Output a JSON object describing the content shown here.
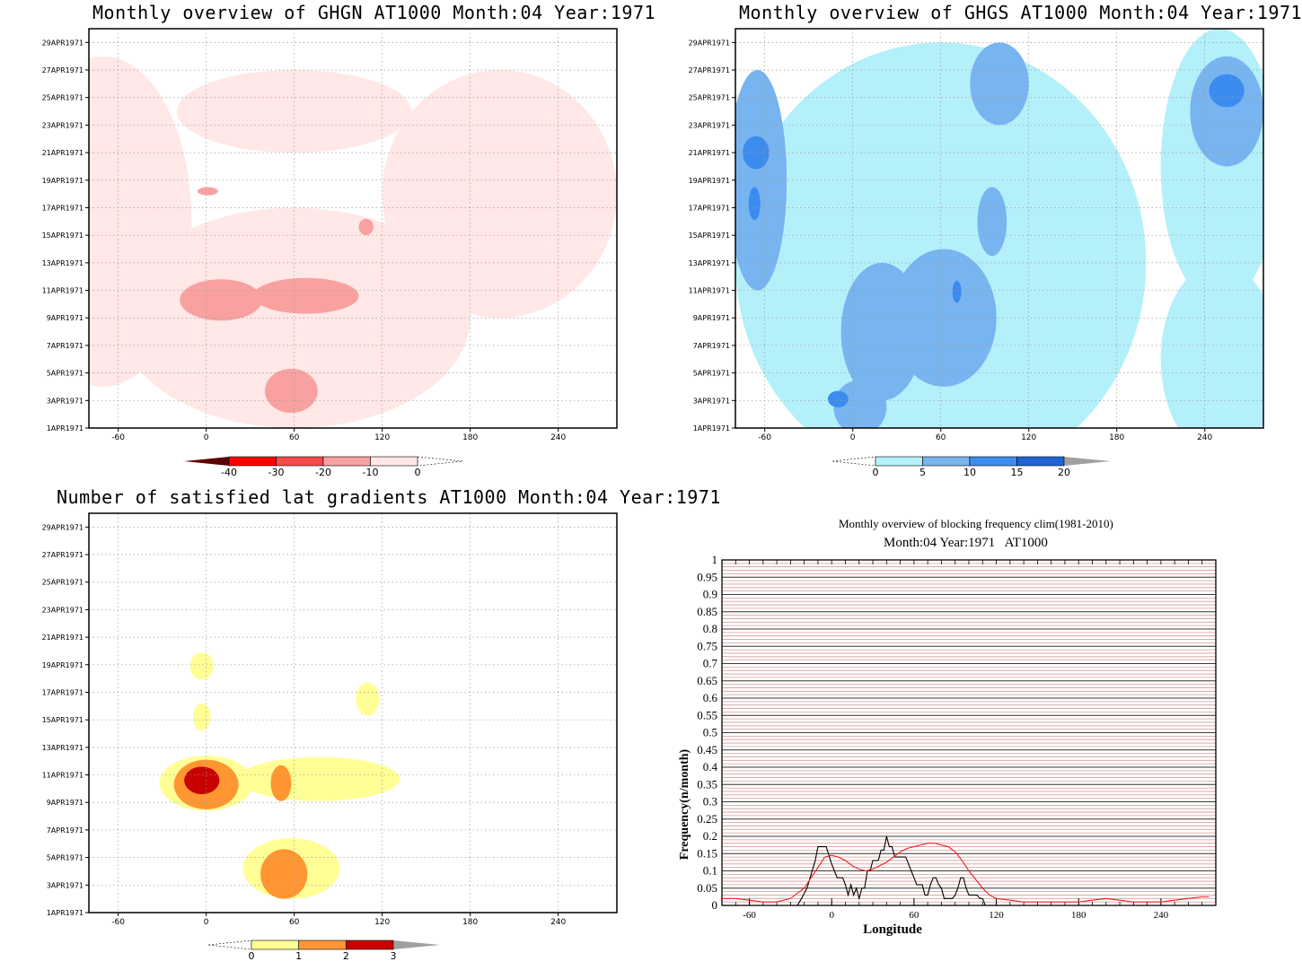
{
  "chart_data": [
    {
      "type": "heatmap",
      "title": "Monthly overview of GHGN AT1000 Month:04 Year:1971",
      "x_ticks": [
        -60,
        0,
        60,
        120,
        180,
        240
      ],
      "y_ticks": [
        "1APR1971",
        "3APR1971",
        "5APR1971",
        "7APR1971",
        "9APR1971",
        "11APR1971",
        "13APR1971",
        "15APR1971",
        "17APR1971",
        "19APR1971",
        "21APR1971",
        "23APR1971",
        "25APR1971",
        "27APR1971",
        "29APR1971"
      ],
      "xlim": [
        -80,
        280
      ],
      "ylim": [
        1,
        30
      ],
      "grid": true,
      "colorbar": {
        "ticks": [
          "-40",
          "-30",
          "-20",
          "-10",
          "0"
        ],
        "colors": [
          "#5c0000",
          "#ff0000",
          "#f44b4b",
          "#f9a1a1",
          "#ffe8e6"
        ]
      },
      "regions": [
        {
          "level": -10,
          "x": -70,
          "y": 16,
          "rx": 60,
          "ry": 12
        },
        {
          "level": -10,
          "x": 60,
          "y": 9,
          "rx": 120,
          "ry": 8
        },
        {
          "level": -10,
          "x": 200,
          "y": 18,
          "rx": 80,
          "ry": 9
        },
        {
          "level": -10,
          "x": 60,
          "y": 24,
          "rx": 80,
          "ry": 3
        },
        {
          "level": -20,
          "x": 10,
          "y": 10.3,
          "rx": 28,
          "ry": 1.5
        },
        {
          "level": -20,
          "x": 68,
          "y": 10.6,
          "rx": 36,
          "ry": 1.3
        },
        {
          "level": -20,
          "x": 58,
          "y": 3.7,
          "rx": 18,
          "ry": 1.6
        },
        {
          "level": -20,
          "x": 109,
          "y": 15.6,
          "rx": 5,
          "ry": 0.6
        },
        {
          "level": -20,
          "x": 1,
          "y": 18.2,
          "rx": 7,
          "ry": 0.3
        }
      ]
    },
    {
      "type": "heatmap",
      "title": "Monthly overview of GHGS AT1000 Month:04 Year:1971",
      "x_ticks": [
        -60,
        0,
        60,
        120,
        180,
        240
      ],
      "y_ticks": [
        "1APR1971",
        "3APR1971",
        "5APR1971",
        "7APR1971",
        "9APR1971",
        "11APR1971",
        "13APR1971",
        "15APR1971",
        "17APR1971",
        "19APR1971",
        "21APR1971",
        "23APR1971",
        "25APR1971",
        "27APR1971",
        "29APR1971"
      ],
      "xlim": [
        -80,
        280
      ],
      "ylim": [
        1,
        30
      ],
      "grid": true,
      "colorbar": {
        "ticks": [
          "0",
          "5",
          "10",
          "15",
          "20"
        ],
        "colors": [
          "#b4f0fa",
          "#78b4f0",
          "#3c8cf0",
          "#1e64d2",
          "#a0a0a0"
        ]
      },
      "regions": [
        {
          "level": 5,
          "x": 60,
          "y": 13,
          "rx": 140,
          "ry": 16
        },
        {
          "level": 5,
          "x": 250,
          "y": 20,
          "rx": 40,
          "ry": 10
        },
        {
          "level": 5,
          "x": 250,
          "y": 6,
          "rx": 40,
          "ry": 7
        },
        {
          "level": 10,
          "x": -65,
          "y": 19,
          "rx": 20,
          "ry": 8
        },
        {
          "level": 10,
          "x": 20,
          "y": 8,
          "rx": 28,
          "ry": 5
        },
        {
          "level": 10,
          "x": 62,
          "y": 9,
          "rx": 36,
          "ry": 5
        },
        {
          "level": 10,
          "x": 95,
          "y": 16,
          "rx": 10,
          "ry": 2.5
        },
        {
          "level": 10,
          "x": 100,
          "y": 26,
          "rx": 20,
          "ry": 3
        },
        {
          "level": 10,
          "x": 255,
          "y": 24,
          "rx": 25,
          "ry": 4
        },
        {
          "level": 10,
          "x": 5,
          "y": 2.5,
          "rx": 18,
          "ry": 2
        },
        {
          "level": 15,
          "x": -66,
          "y": 21,
          "rx": 9,
          "ry": 1.2
        },
        {
          "level": 15,
          "x": -67,
          "y": 17.3,
          "rx": 4,
          "ry": 1.2
        },
        {
          "level": 15,
          "x": 71,
          "y": 10.9,
          "rx": 3,
          "ry": 0.8
        },
        {
          "level": 15,
          "x": 255,
          "y": 25.5,
          "rx": 12,
          "ry": 1.2
        },
        {
          "level": 15,
          "x": -10,
          "y": 3.1,
          "rx": 7,
          "ry": 0.6
        }
      ]
    },
    {
      "type": "heatmap",
      "title": "Number of satisfied lat gradients AT1000 Month:04 Year:1971",
      "x_ticks": [
        -60,
        0,
        60,
        120,
        180,
        240
      ],
      "y_ticks": [
        "1APR1971",
        "3APR1971",
        "5APR1971",
        "7APR1971",
        "9APR1971",
        "11APR1971",
        "13APR1971",
        "15APR1971",
        "17APR1971",
        "19APR1971",
        "21APR1971",
        "23APR1971",
        "25APR1971",
        "27APR1971",
        "29APR1971"
      ],
      "xlim": [
        -80,
        280
      ],
      "ylim": [
        1,
        30
      ],
      "grid": true,
      "colorbar": {
        "ticks": [
          "0",
          "1",
          "2",
          "3"
        ],
        "colors": [
          "#ffff96",
          "#ff9632",
          "#c80000",
          "#a0a0a0"
        ]
      },
      "regions": [
        {
          "level": 1,
          "x": -3,
          "y": 18.9,
          "rx": 8,
          "ry": 1
        },
        {
          "level": 1,
          "x": -3,
          "y": 15.2,
          "rx": 6,
          "ry": 1
        },
        {
          "level": 1,
          "x": 110,
          "y": 16.5,
          "rx": 8,
          "ry": 1.2
        },
        {
          "level": 1,
          "x": 0,
          "y": 10.4,
          "rx": 32,
          "ry": 2
        },
        {
          "level": 1,
          "x": 77,
          "y": 10.7,
          "rx": 55,
          "ry": 1.6
        },
        {
          "level": 1,
          "x": 58,
          "y": 4.2,
          "rx": 33,
          "ry": 2.2
        },
        {
          "level": 2,
          "x": 0,
          "y": 10.3,
          "rx": 22,
          "ry": 1.8
        },
        {
          "level": 2,
          "x": 51,
          "y": 10.4,
          "rx": 7,
          "ry": 1.3
        },
        {
          "level": 2,
          "x": 53,
          "y": 3.8,
          "rx": 16,
          "ry": 1.8
        },
        {
          "level": 3,
          "x": -3,
          "y": 10.6,
          "rx": 12,
          "ry": 1
        }
      ]
    },
    {
      "type": "line",
      "title": "Monthly overview of blocking frequency clim(1981-2010)",
      "subtitle": "Month:04 Year:1971   AT1000",
      "xlabel": "Longitude",
      "ylabel": "Frequency(n/month)",
      "xlim": [
        -80,
        280
      ],
      "ylim": [
        0,
        1
      ],
      "x_ticks": [
        "-60",
        "0",
        "60",
        "120",
        "180",
        "240"
      ],
      "y_ticks": [
        "0",
        "0.05",
        "0.1",
        "0.15",
        "0.2",
        "0.25",
        "0.3",
        "0.35",
        "0.4",
        "0.45",
        "0.5",
        "0.55",
        "0.6",
        "0.65",
        "0.7",
        "0.75",
        "0.8",
        "0.85",
        "0.9",
        "0.95",
        "1"
      ],
      "series": [
        {
          "color": "#000000",
          "x": [
            -25,
            -22,
            -18,
            -15,
            -12,
            -10,
            -8,
            -4,
            0,
            2,
            4,
            6,
            8,
            10,
            12,
            14,
            16,
            18,
            20,
            22,
            24,
            26,
            28,
            30,
            32,
            34,
            36,
            38,
            40,
            42,
            44,
            46,
            48,
            50,
            52,
            54,
            56,
            58,
            60,
            62,
            64,
            66,
            68,
            70,
            72,
            74,
            76,
            78,
            80,
            82,
            84,
            86,
            88,
            90,
            92,
            94,
            96,
            98,
            100,
            102,
            104,
            106,
            108,
            110,
            112,
            116
          ],
          "y": [
            0,
            0.02,
            0.05,
            0.09,
            0.13,
            0.17,
            0.17,
            0.17,
            0.12,
            0.1,
            0.08,
            0.08,
            0.08,
            0.06,
            0.03,
            0.06,
            0.03,
            0.05,
            0.02,
            0.05,
            0.05,
            0.1,
            0.1,
            0.13,
            0.13,
            0.13,
            0.16,
            0.16,
            0.2,
            0.17,
            0.17,
            0.14,
            0.14,
            0.14,
            0.14,
            0.14,
            0.12,
            0.1,
            0.08,
            0.06,
            0.06,
            0.06,
            0.03,
            0.03,
            0.06,
            0.08,
            0.08,
            0.06,
            0.05,
            0.02,
            0.02,
            0.02,
            0.02,
            0.03,
            0.05,
            0.08,
            0.08,
            0.05,
            0.03,
            0.03,
            0.03,
            0.03,
            0.02,
            0.02,
            0,
            0
          ]
        },
        {
          "color": "#e82020",
          "x": [
            -80,
            -70,
            -60,
            -50,
            -40,
            -30,
            -20,
            -15,
            -10,
            -5,
            0,
            5,
            10,
            15,
            20,
            25,
            30,
            35,
            40,
            45,
            50,
            55,
            60,
            65,
            70,
            75,
            80,
            85,
            90,
            95,
            100,
            105,
            110,
            115,
            120,
            130,
            140,
            150,
            160,
            170,
            180,
            190,
            200,
            210,
            220,
            230,
            240,
            250,
            260,
            270,
            275
          ],
          "y": [
            0.02,
            0.02,
            0.015,
            0.01,
            0.01,
            0.02,
            0.05,
            0.08,
            0.11,
            0.14,
            0.145,
            0.14,
            0.13,
            0.115,
            0.105,
            0.1,
            0.105,
            0.115,
            0.125,
            0.14,
            0.155,
            0.165,
            0.17,
            0.175,
            0.18,
            0.18,
            0.175,
            0.17,
            0.155,
            0.13,
            0.1,
            0.075,
            0.05,
            0.03,
            0.02,
            0.015,
            0.01,
            0.01,
            0.01,
            0.01,
            0.01,
            0.015,
            0.02,
            0.015,
            0.01,
            0.01,
            0.01,
            0.015,
            0.02,
            0.025,
            0.025
          ]
        }
      ]
    }
  ]
}
